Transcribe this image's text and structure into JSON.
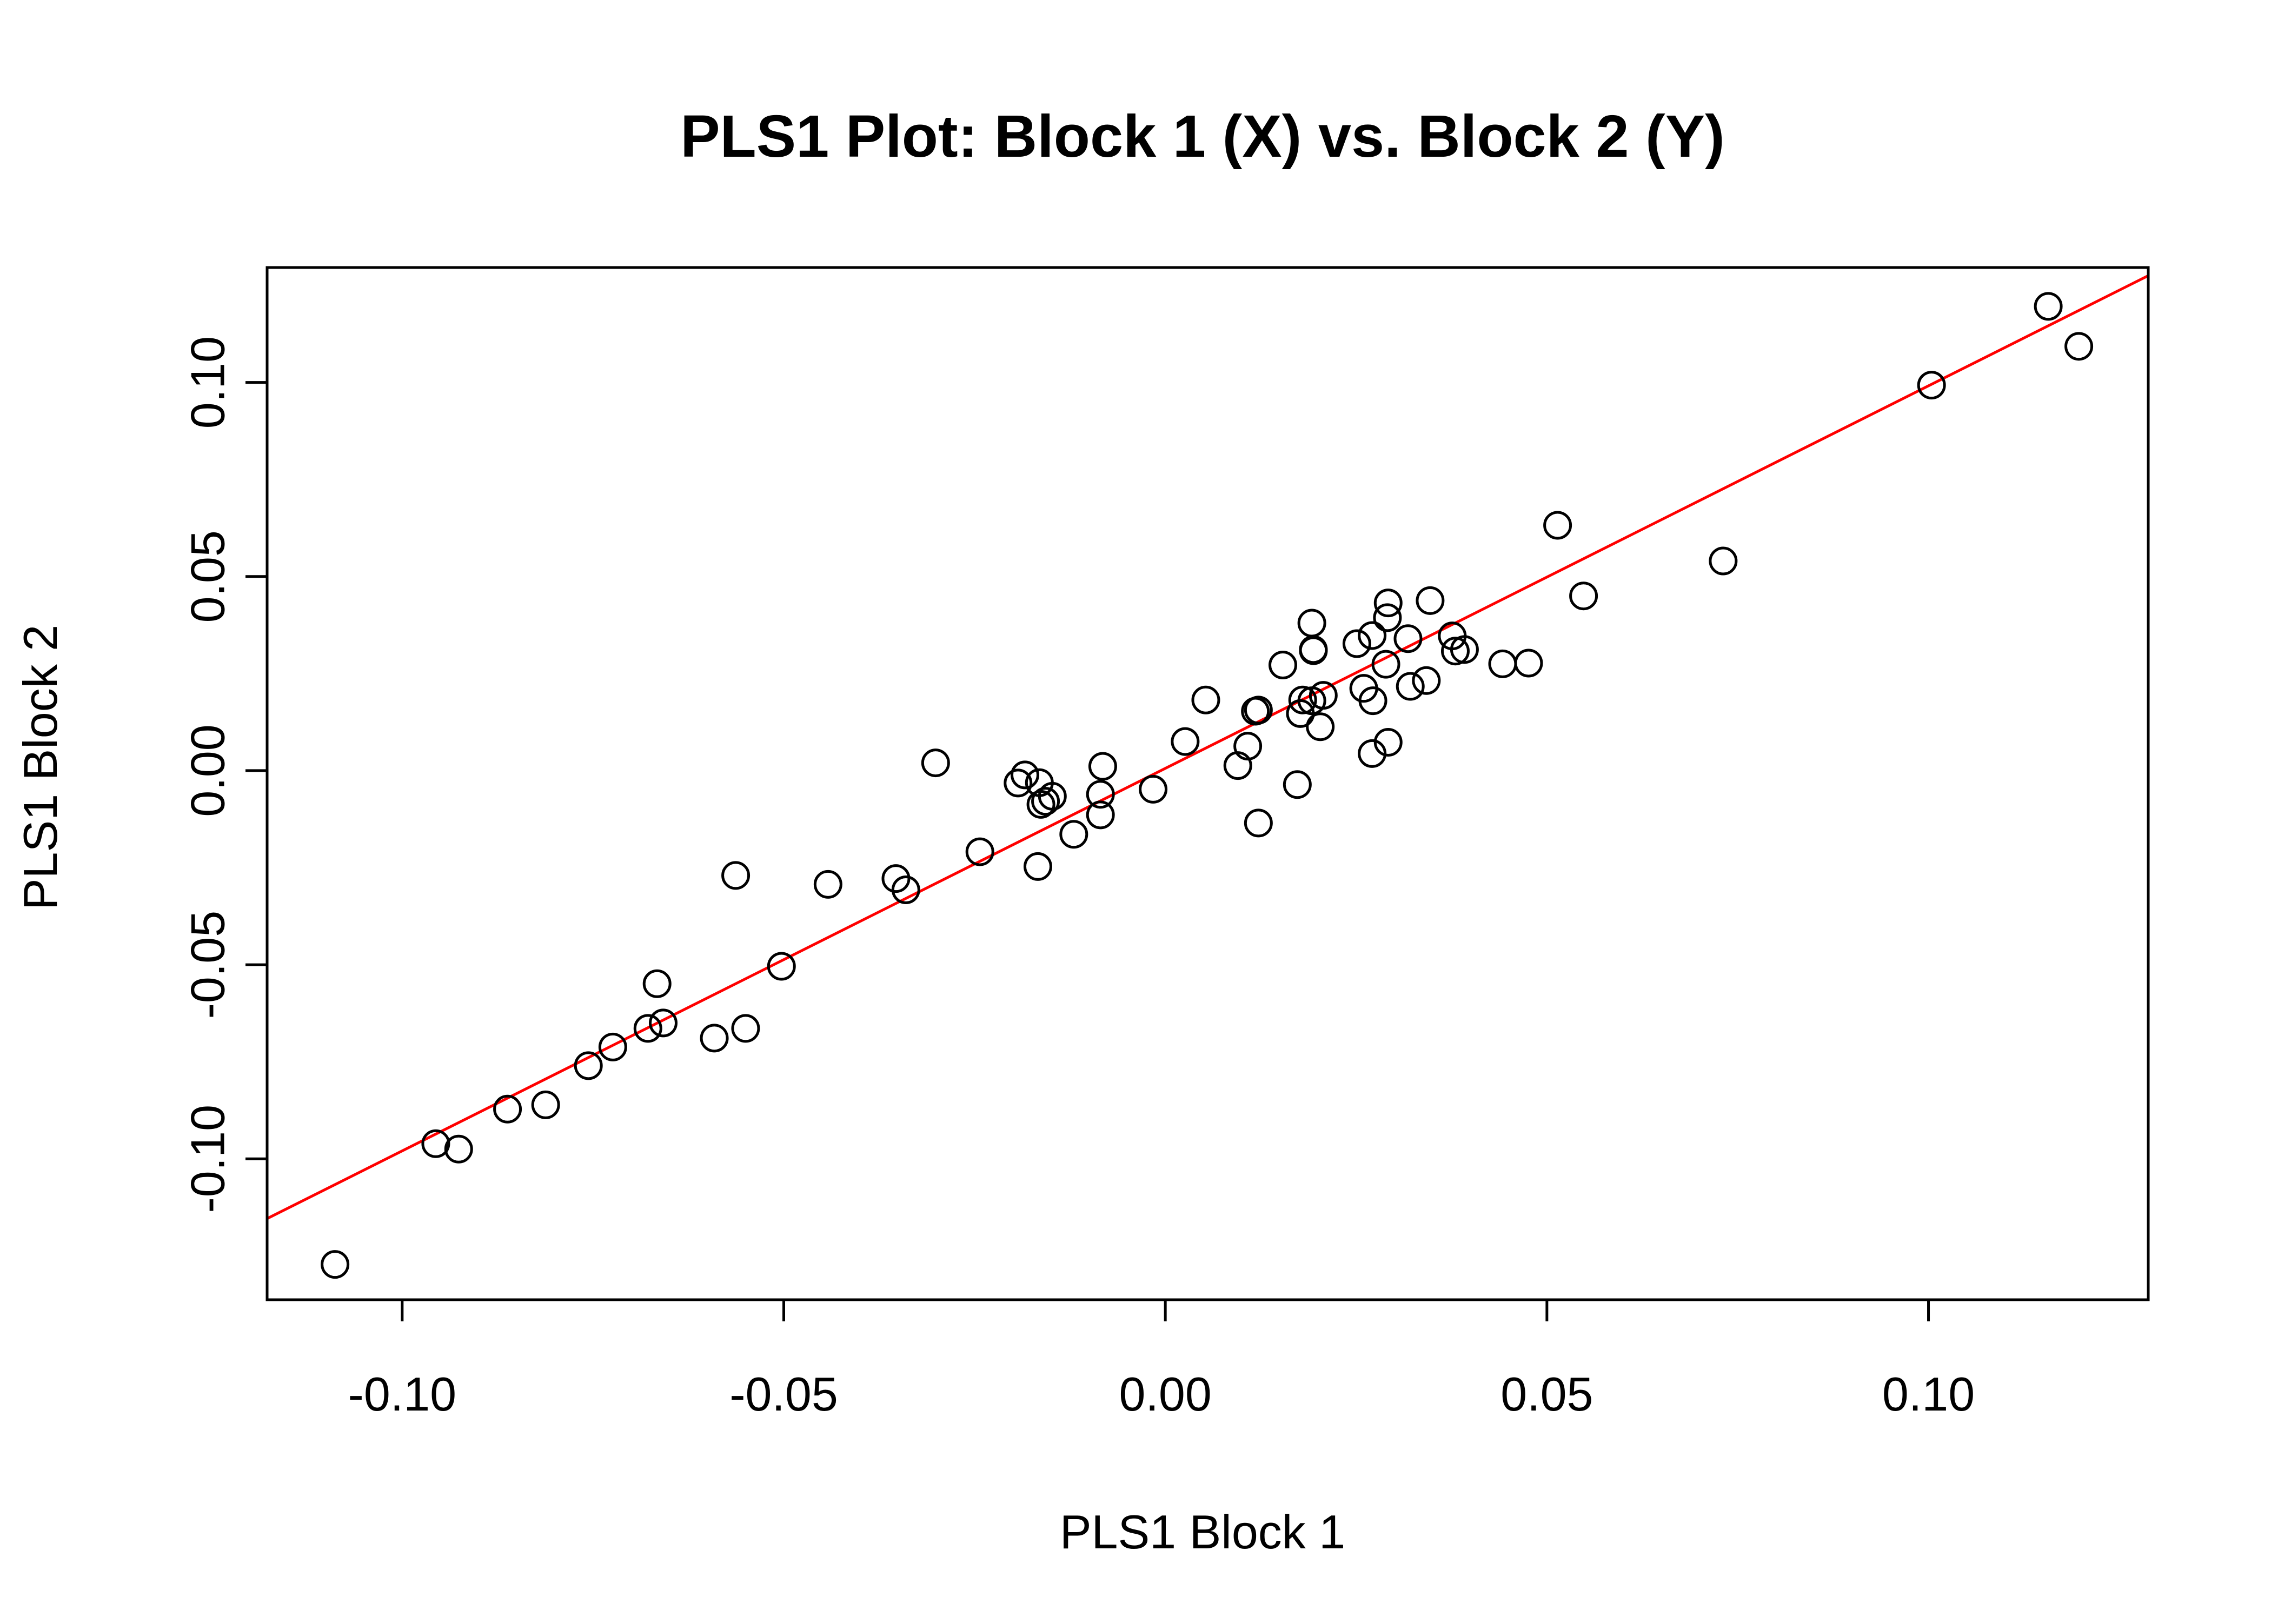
{
  "chart_data": {
    "type": "scatter",
    "title": "PLS1 Plot: Block 1 (X) vs. Block 2 (Y)",
    "xlabel": "PLS1 Block 1",
    "ylabel": "PLS1 Block 2",
    "xlim": [
      -0.1177,
      0.1288
    ],
    "ylim": [
      -0.1363,
      0.1296
    ],
    "x_ticks": [
      -0.1,
      -0.05,
      0.0,
      0.05,
      0.1
    ],
    "x_tick_labels": [
      "-0.10",
      "-0.05",
      "0.00",
      "0.05",
      "0.10"
    ],
    "y_ticks": [
      -0.1,
      -0.05,
      0.0,
      0.05,
      0.1
    ],
    "y_tick_labels": [
      "-0.10",
      "-0.05",
      "0.00",
      "0.05",
      "0.10"
    ],
    "grid": false,
    "colors": {
      "points": "#000000",
      "fit_line": "#ff0000",
      "axes": "#000000"
    },
    "fit_line": {
      "name": "regression line",
      "x": [
        -0.1177,
        0.1288
      ],
      "y": [
        -0.1154,
        0.1275
      ]
    },
    "series": [
      {
        "name": "observations",
        "marker": "open-circle",
        "points": [
          {
            "x": -0.1088,
            "y": -0.1272
          },
          {
            "x": -0.0956,
            "y": -0.0961
          },
          {
            "x": -0.0926,
            "y": -0.0975
          },
          {
            "x": -0.0862,
            "y": -0.0872
          },
          {
            "x": -0.0812,
            "y": -0.0861
          },
          {
            "x": -0.0756,
            "y": -0.076
          },
          {
            "x": -0.0724,
            "y": -0.0712
          },
          {
            "x": -0.0678,
            "y": -0.0664
          },
          {
            "x": -0.0666,
            "y": -0.0549
          },
          {
            "x": -0.0658,
            "y": -0.065
          },
          {
            "x": -0.0591,
            "y": -0.0689
          },
          {
            "x": -0.0563,
            "y": -0.027
          },
          {
            "x": -0.055,
            "y": -0.0664
          },
          {
            "x": -0.0503,
            "y": -0.0504
          },
          {
            "x": -0.0442,
            "y": -0.0293
          },
          {
            "x": -0.0353,
            "y": -0.0278
          },
          {
            "x": -0.034,
            "y": -0.0307
          },
          {
            "x": -0.0301,
            "y": 0.002
          },
          {
            "x": -0.0243,
            "y": -0.0209
          },
          {
            "x": -0.0193,
            "y": -0.0032
          },
          {
            "x": -0.0184,
            "y": -0.0011
          },
          {
            "x": -0.0165,
            "y": -0.0031
          },
          {
            "x": -0.0163,
            "y": -0.0087
          },
          {
            "x": -0.0157,
            "y": -0.0079
          },
          {
            "x": -0.0167,
            "y": -0.0247
          },
          {
            "x": -0.0148,
            "y": -0.0066
          },
          {
            "x": -0.012,
            "y": -0.0164
          },
          {
            "x": -0.0085,
            "y": -0.0061
          },
          {
            "x": -0.0085,
            "y": -0.0114
          },
          {
            "x": -0.0082,
            "y": 0.0011
          },
          {
            "x": -0.0016,
            "y": -0.0048
          },
          {
            "x": 0.0026,
            "y": 0.0075
          },
          {
            "x": 0.0053,
            "y": 0.0182
          },
          {
            "x": 0.0095,
            "y": 0.0013
          },
          {
            "x": 0.0108,
            "y": 0.0063
          },
          {
            "x": 0.0118,
            "y": 0.0153
          },
          {
            "x": 0.0122,
            "y": 0.0156
          },
          {
            "x": 0.0122,
            "y": -0.0135
          },
          {
            "x": 0.0154,
            "y": 0.0272
          },
          {
            "x": 0.0173,
            "y": -0.0036
          },
          {
            "x": 0.0177,
            "y": 0.0147
          },
          {
            "x": 0.018,
            "y": 0.0182
          },
          {
            "x": 0.0192,
            "y": 0.038
          },
          {
            "x": 0.0194,
            "y": 0.0312
          },
          {
            "x": 0.0194,
            "y": 0.0309
          },
          {
            "x": 0.0192,
            "y": 0.018
          },
          {
            "x": 0.0203,
            "y": 0.0113
          },
          {
            "x": 0.0207,
            "y": 0.0194
          },
          {
            "x": 0.0251,
            "y": 0.0327
          },
          {
            "x": 0.026,
            "y": 0.0212
          },
          {
            "x": 0.0271,
            "y": 0.0044
          },
          {
            "x": 0.0271,
            "y": 0.0348
          },
          {
            "x": 0.0272,
            "y": 0.018
          },
          {
            "x": 0.0289,
            "y": 0.0274
          },
          {
            "x": 0.0291,
            "y": 0.0394
          },
          {
            "x": 0.0292,
            "y": 0.0432
          },
          {
            "x": 0.0292,
            "y": 0.0073
          },
          {
            "x": 0.0318,
            "y": 0.034
          },
          {
            "x": 0.0321,
            "y": 0.0217
          },
          {
            "x": 0.0342,
            "y": 0.0232
          },
          {
            "x": 0.0347,
            "y": 0.0438
          },
          {
            "x": 0.0376,
            "y": 0.0347
          },
          {
            "x": 0.038,
            "y": 0.0308
          },
          {
            "x": 0.0392,
            "y": 0.0312
          },
          {
            "x": 0.0442,
            "y": 0.0275
          },
          {
            "x": 0.0476,
            "y": 0.0277
          },
          {
            "x": 0.0514,
            "y": 0.0632
          },
          {
            "x": 0.0548,
            "y": 0.045
          },
          {
            "x": 0.0731,
            "y": 0.054
          },
          {
            "x": 0.1004,
            "y": 0.0993
          },
          {
            "x": 0.1157,
            "y": 0.1196
          },
          {
            "x": 0.1197,
            "y": 0.1093
          }
        ]
      }
    ]
  }
}
